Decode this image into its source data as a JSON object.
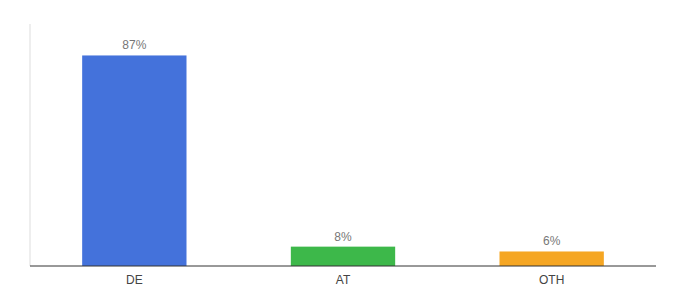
{
  "chart_data": {
    "type": "bar",
    "categories": [
      "DE",
      "AT",
      "OTH"
    ],
    "values": [
      87,
      8,
      6
    ],
    "value_labels": [
      "87%",
      "8%",
      "6%"
    ],
    "colors": [
      "#4472db",
      "#3db84a",
      "#f5a623"
    ],
    "ylim": [
      0,
      100
    ],
    "data_labels": true,
    "tick_labels": "x",
    "grid": false
  }
}
